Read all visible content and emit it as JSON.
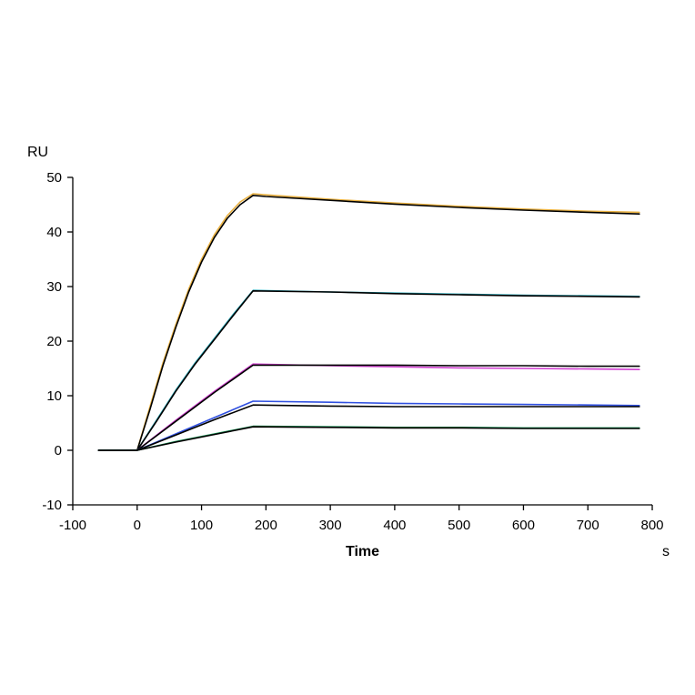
{
  "chart_data": {
    "type": "line",
    "title": "",
    "xlabel": "Time",
    "xunit": "s",
    "ylabel": "RU",
    "xlim": [
      -100,
      800
    ],
    "ylim": [
      -10,
      50
    ],
    "xticks": [
      -100,
      0,
      100,
      200,
      300,
      400,
      500,
      600,
      700,
      800
    ],
    "yticks": [
      -10,
      0,
      10,
      20,
      30,
      40,
      50
    ],
    "grid": false,
    "legend": "none",
    "series": [
      {
        "color": "#e8b040",
        "x": [
          -60,
          0,
          20,
          40,
          60,
          80,
          100,
          120,
          140,
          160,
          180,
          200,
          300,
          400,
          500,
          600,
          700,
          780
        ],
        "y": [
          0,
          0,
          8,
          16,
          23,
          29.5,
          35,
          39.5,
          43,
          45.5,
          47,
          46.8,
          46,
          45.3,
          44.7,
          44.2,
          43.8,
          43.6
        ]
      },
      {
        "color": "#000000",
        "x": [
          -60,
          0,
          20,
          40,
          60,
          80,
          100,
          120,
          140,
          160,
          180,
          200,
          300,
          400,
          500,
          600,
          700,
          780
        ],
        "y": [
          0,
          0,
          7.5,
          15.5,
          22.5,
          29,
          34.5,
          39,
          42.5,
          45,
          46.7,
          46.5,
          45.8,
          45.1,
          44.5,
          44,
          43.6,
          43.3
        ]
      },
      {
        "color": "#20a0b0",
        "x": [
          -60,
          0,
          30,
          60,
          90,
          120,
          150,
          180,
          300,
          400,
          500,
          600,
          700,
          780
        ],
        "y": [
          0,
          0,
          5.5,
          11,
          16,
          20.5,
          25,
          29.3,
          29,
          28.8,
          28.6,
          28.4,
          28.3,
          28.2
        ]
      },
      {
        "color": "#000000",
        "x": [
          -60,
          0,
          30,
          60,
          90,
          120,
          150,
          180,
          300,
          400,
          500,
          600,
          700,
          780
        ],
        "y": [
          0,
          0,
          5.3,
          10.8,
          15.8,
          20.3,
          24.8,
          29.2,
          29,
          28.7,
          28.5,
          28.3,
          28.2,
          28.1
        ]
      },
      {
        "color": "#d040d0",
        "x": [
          -60,
          0,
          60,
          120,
          180,
          300,
          400,
          500,
          600,
          700,
          780
        ],
        "y": [
          0,
          0,
          5.5,
          10.8,
          15.8,
          15.5,
          15.3,
          15.1,
          15,
          14.9,
          14.8
        ]
      },
      {
        "color": "#000000",
        "x": [
          -60,
          0,
          60,
          120,
          180,
          300,
          400,
          500,
          600,
          700,
          780
        ],
        "y": [
          0,
          0,
          5.3,
          10.6,
          15.6,
          15.6,
          15.6,
          15.5,
          15.5,
          15.4,
          15.4
        ]
      },
      {
        "color": "#3050e0",
        "x": [
          -60,
          0,
          60,
          120,
          180,
          300,
          400,
          500,
          600,
          700,
          780
        ],
        "y": [
          0,
          0,
          3,
          6,
          9,
          8.8,
          8.6,
          8.5,
          8.4,
          8.3,
          8.2
        ]
      },
      {
        "color": "#000000",
        "x": [
          -60,
          0,
          60,
          120,
          180,
          300,
          400,
          500,
          600,
          700,
          780
        ],
        "y": [
          0,
          0,
          2.8,
          5.6,
          8.3,
          8.1,
          8,
          8,
          8,
          8,
          8
        ]
      },
      {
        "color": "#109050",
        "x": [
          -60,
          0,
          60,
          120,
          180,
          300,
          400,
          500,
          600,
          700,
          780
        ],
        "y": [
          0,
          0,
          1.6,
          3,
          4.4,
          4.3,
          4.2,
          4.2,
          4.1,
          4.1,
          4.1
        ]
      },
      {
        "color": "#000000",
        "x": [
          -60,
          0,
          60,
          120,
          180,
          300,
          400,
          500,
          600,
          700,
          780
        ],
        "y": [
          0,
          0,
          1.5,
          2.9,
          4.3,
          4.2,
          4.1,
          4.1,
          4,
          4,
          4
        ]
      }
    ]
  }
}
